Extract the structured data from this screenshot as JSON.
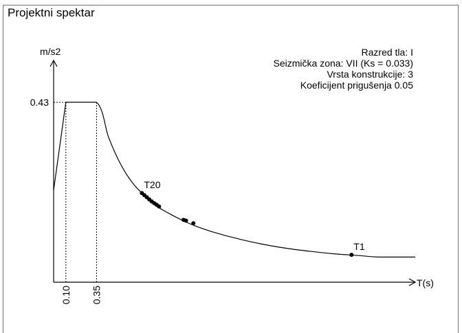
{
  "chart_data": {
    "type": "line",
    "title": "Projektni spektar",
    "ylabel": "m/s2",
    "xlabel": "T(s)",
    "y_tick_labels": [
      "0.43"
    ],
    "x_tick_labels": [
      "0.10",
      "0.35"
    ],
    "info_lines": [
      "Razred tla: I",
      "Seizmička zona: VII (Ks = 0.033)",
      "Vrsta konstrukcije: 3",
      "Koeficijent prigušenja 0.05"
    ],
    "xlim": [
      0,
      2.95
    ],
    "ylim": [
      0,
      0.53
    ],
    "plateau": 0.43,
    "corner_periods": [
      0.1,
      0.35
    ],
    "curve": [
      {
        "x": 0.0,
        "y": 0.22
      },
      {
        "x": 0.1,
        "y": 0.43
      },
      {
        "x": 0.35,
        "y": 0.43
      },
      {
        "x": 0.45,
        "y": 0.345
      },
      {
        "x": 0.55,
        "y": 0.28
      },
      {
        "x": 0.65,
        "y": 0.235
      },
      {
        "x": 0.75,
        "y": 0.205
      },
      {
        "x": 0.85,
        "y": 0.18
      },
      {
        "x": 0.95,
        "y": 0.163
      },
      {
        "x": 1.05,
        "y": 0.148
      },
      {
        "x": 1.15,
        "y": 0.135
      },
      {
        "x": 1.3,
        "y": 0.12
      },
      {
        "x": 1.5,
        "y": 0.104
      },
      {
        "x": 1.7,
        "y": 0.091
      },
      {
        "x": 1.9,
        "y": 0.081
      },
      {
        "x": 2.1,
        "y": 0.0735
      },
      {
        "x": 2.3,
        "y": 0.0675
      },
      {
        "x": 2.5,
        "y": 0.0635
      },
      {
        "x": 2.65,
        "y": 0.06
      },
      {
        "x": 2.95,
        "y": 0.06
      }
    ],
    "points": [
      {
        "x": 0.72,
        "y": 0.213,
        "label": "T20"
      },
      {
        "x": 0.74,
        "y": 0.208
      },
      {
        "x": 0.76,
        "y": 0.203
      },
      {
        "x": 0.78,
        "y": 0.198
      },
      {
        "x": 0.8,
        "y": 0.193
      },
      {
        "x": 0.82,
        "y": 0.189
      },
      {
        "x": 0.84,
        "y": 0.185
      },
      {
        "x": 0.86,
        "y": 0.181
      },
      {
        "x": 1.06,
        "y": 0.149
      },
      {
        "x": 1.08,
        "y": 0.147
      },
      {
        "x": 1.14,
        "y": 0.141
      },
      {
        "x": 2.43,
        "y": 0.0655,
        "label": "T1"
      }
    ],
    "grid": false,
    "legend": "none"
  }
}
